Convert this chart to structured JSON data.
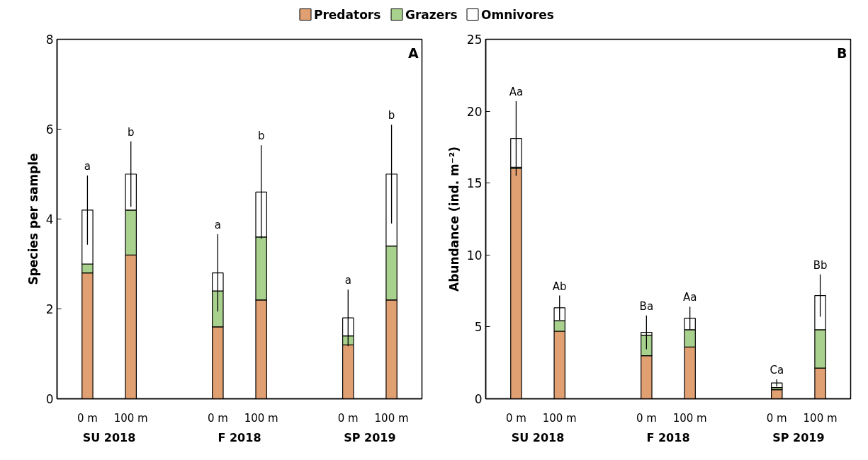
{
  "chart_data": [
    {
      "type": "bar",
      "title": "A",
      "ylabel": "Species per sample",
      "stacked": true,
      "legend": "top",
      "grid": false,
      "categories": [
        "0 m",
        "100 m",
        "0 m",
        "100 m",
        "0 m",
        "100 m"
      ],
      "series": [
        {
          "name": "Predators",
          "color": "#e0a072",
          "values": [
            2.8,
            3.2,
            1.6,
            2.2,
            1.2,
            2.2
          ]
        },
        {
          "name": "Grazers",
          "color": "#a9d18e",
          "values": [
            0.2,
            1.0,
            0.8,
            1.4,
            0.2,
            1.2
          ]
        },
        {
          "name": "Omnivores",
          "color": "#ffffff",
          "values": [
            1.2,
            0.8,
            0.4,
            1.0,
            0.4,
            1.6
          ],
          "errors": [
            0.77,
            0.73,
            0.86,
            1.04,
            0.63,
            1.1
          ]
        }
      ],
      "ylim": [
        0,
        8
      ],
      "yticks": [
        0,
        2,
        4,
        6,
        8
      ],
      "annotations": [
        {
          "text": "a",
          "y": 4.97
        },
        {
          "text": "b",
          "y": 5.73
        },
        {
          "text": "a",
          "y": 3.66
        },
        {
          "text": "b",
          "y": 5.64
        },
        {
          "text": "a",
          "y": 2.43
        },
        {
          "text": "b",
          "y": 6.1
        },
        "SU 2018",
        "F 2018",
        "SP 2019"
      ]
    },
    {
      "type": "bar",
      "title": "B",
      "ylabel": "Abundance (ind. m⁻²)",
      "stacked": true,
      "grid": false,
      "categories": [
        "0 m",
        "100 m",
        "0 m",
        "100 m",
        "0 m",
        "100 m"
      ],
      "series": [
        {
          "color": "#e0a072",
          "values": [
            16.0,
            4.7,
            3.0,
            3.6,
            0.63,
            2.13
          ]
        },
        {
          "color": "#a9d18e",
          "values": [
            0.1,
            0.73,
            1.42,
            1.2,
            0.15,
            2.67
          ]
        },
        {
          "color": "#ffffff",
          "values": [
            2.0,
            0.9,
            0.2,
            0.8,
            0.32,
            2.38
          ],
          "errors": [
            2.6,
            0.86,
            1.17,
            0.8,
            0.25,
            1.47
          ]
        }
      ],
      "ylim": [
        0,
        25
      ],
      "yticks": [
        0,
        5,
        10,
        15,
        20,
        25
      ],
      "annotations": [
        {
          "text": "Aa",
          "y": 20.7
        },
        {
          "text": "Ab",
          "y": 7.18
        },
        {
          "text": "Ba",
          "y": 5.8
        },
        {
          "text": "Aa",
          "y": 6.4
        },
        {
          "text": "Ca",
          "y": 1.35
        },
        {
          "text": "Bb",
          "y": 8.65
        },
        "SU 2018",
        "F 2018",
        "SP 2019"
      ]
    }
  ]
}
